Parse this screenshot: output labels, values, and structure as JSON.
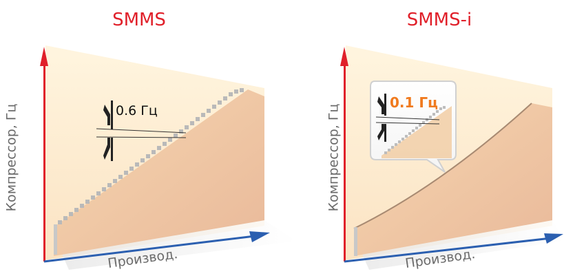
{
  "panels": [
    {
      "title": "SMMS",
      "y_axis_label": "Компрессор, Гц",
      "x_axis_label": "Производ.",
      "step_label": "0.6 Гц",
      "step_color": "#111111"
    },
    {
      "title": "SMMS-i",
      "y_axis_label": "Компрессор, Гц",
      "x_axis_label": "Производ.",
      "step_label": "0.1 Гц",
      "step_color": "#f07a1e"
    }
  ],
  "colors": {
    "title": "#e0202a",
    "y_axis": "#e0202a",
    "x_axis": "#2b5fb0",
    "wall_top": "#fff3d8",
    "wall_bottom": "#f6d9b4",
    "ramp": "#f0c9a0"
  }
}
